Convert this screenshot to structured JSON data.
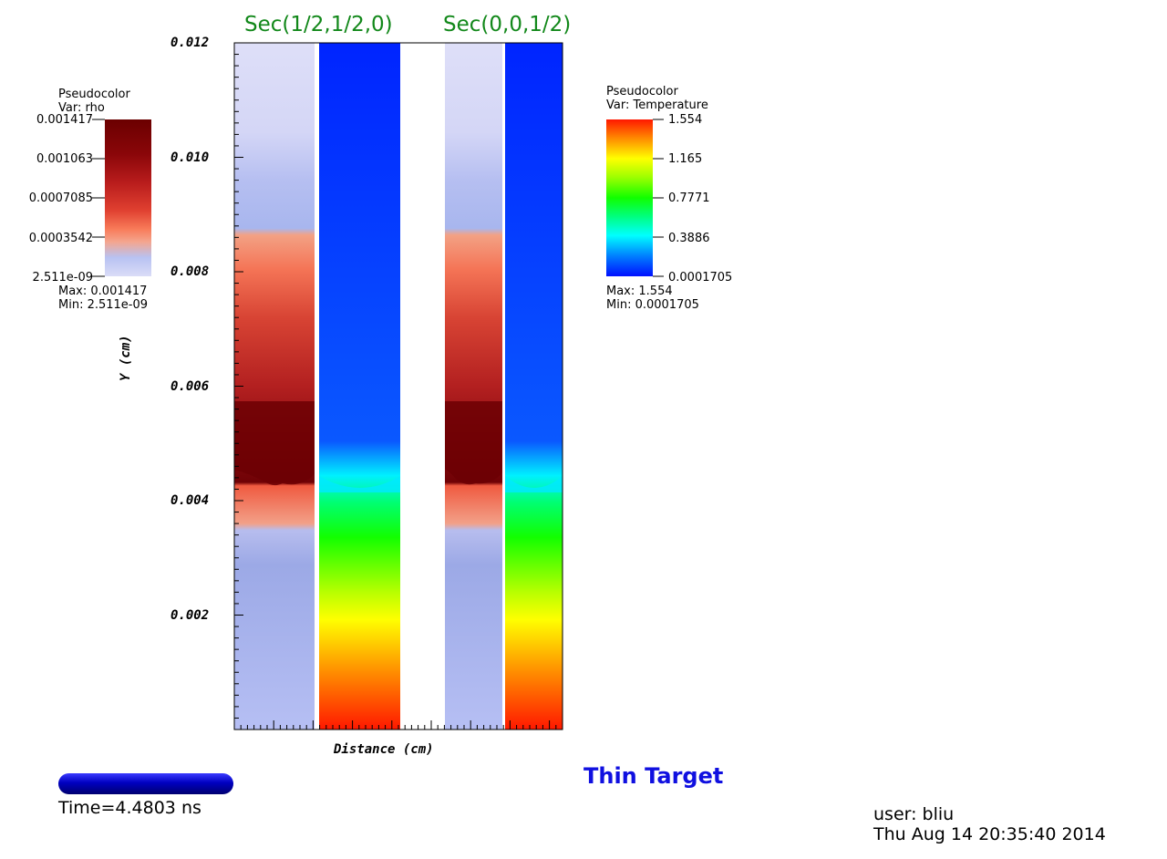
{
  "chart_data": {
    "type": "heatmap",
    "title": "Thin Target",
    "xlabel": "Distance (cm)",
    "ylabel": "Y (cm)",
    "ylim": [
      0,
      0.012
    ],
    "yticks": [
      "0.012",
      "0.010",
      "0.008",
      "0.006",
      "0.004",
      "0.002"
    ],
    "sections": [
      {
        "label": "Sec(1/2,1/2,0)"
      },
      {
        "label": "Sec(0,0,1/2)"
      }
    ],
    "legends": [
      {
        "kind": "Pseudocolor",
        "var": "Var: rho",
        "ticks": [
          "0.001417",
          "0.001063",
          "0.0007085",
          "0.0003542",
          "2.511e-09"
        ],
        "max": "Max:  0.001417",
        "min": "Min:  2.511e-09",
        "colormap": "cool-warm dark"
      },
      {
        "kind": "Pseudocolor",
        "var": "Var: Temperature",
        "ticks": [
          "1.554",
          "1.165",
          "0.7771",
          "0.3886",
          "0.0001705"
        ],
        "max": "Max:  1.554",
        "min": "Min:  0.0001705",
        "colormap": "rainbow"
      }
    ],
    "time": "Time=4.4803 ns"
  },
  "footer": {
    "user": "user: bliu",
    "date": "Thu Aug 14 20:35:40 2014"
  },
  "colors": {
    "section_title": "#12881a",
    "main_title": "#1010e0"
  }
}
